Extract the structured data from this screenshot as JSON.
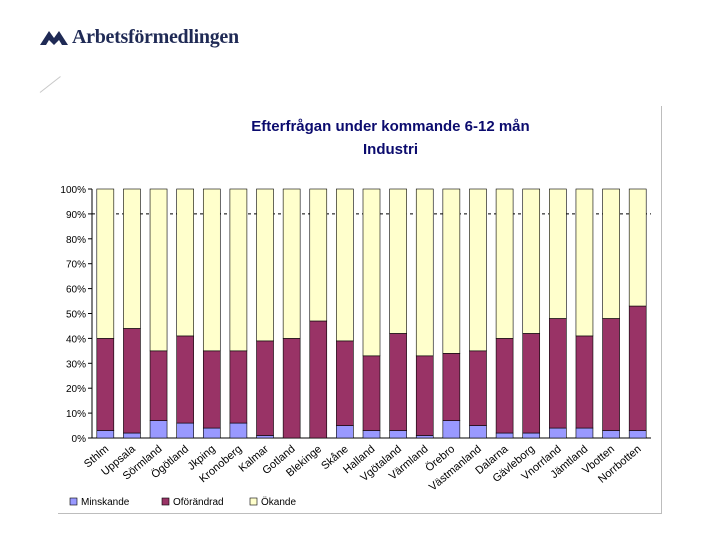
{
  "header": {
    "logo_text": "Arbetsförmedlingen"
  },
  "chart_data": {
    "type": "bar",
    "stacked": true,
    "title": "Efterfrågan under kommande 6-12 mån",
    "subtitle": "Industri",
    "categories": [
      "Sthlm",
      "Uppsala",
      "Sörmland",
      "Ögötland",
      "Jkping",
      "Kronoberg",
      "Kalmar",
      "Gotland",
      "Blekinge",
      "Skåne",
      "Halland",
      "Vgötaland",
      "Värmland",
      "Örebro",
      "Västmanland",
      "Dalarna",
      "Gävleborg",
      "Vnorrland",
      "Jämtland",
      "Vbotten",
      "Norrbotten"
    ],
    "series": [
      {
        "name": "Minskande",
        "color": "#9999ff",
        "values": [
          3,
          2,
          7,
          6,
          4,
          6,
          1,
          0,
          0,
          5,
          3,
          3,
          1,
          7,
          5,
          2,
          2,
          4,
          4,
          3,
          3
        ]
      },
      {
        "name": "Oförändrad",
        "color": "#993366",
        "values": [
          37,
          42,
          28,
          35,
          31,
          29,
          38,
          40,
          47,
          34,
          30,
          39,
          32,
          27,
          30,
          38,
          40,
          44,
          37,
          45,
          50
        ]
      },
      {
        "name": "Ökande",
        "color": "#ffffcc",
        "values": [
          60,
          56,
          65,
          59,
          65,
          65,
          61,
          60,
          53,
          61,
          67,
          58,
          67,
          66,
          65,
          60,
          58,
          52,
          59,
          52,
          47
        ]
      }
    ],
    "ylim": [
      0,
      100
    ],
    "yticks": [
      "0%",
      "10%",
      "20%",
      "30%",
      "40%",
      "50%",
      "60%",
      "70%",
      "80%",
      "90%",
      "100%"
    ],
    "reference_line": 90,
    "legend_position": "bottom",
    "grid": false
  }
}
